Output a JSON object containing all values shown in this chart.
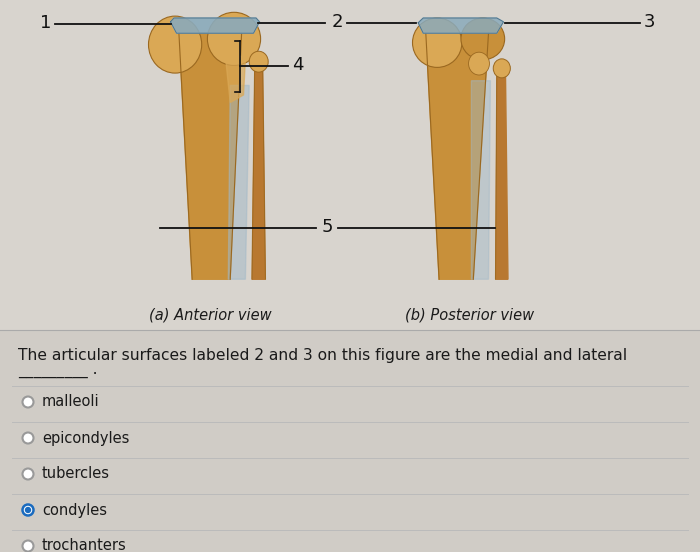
{
  "background_color": "#d8d4ce",
  "question_text": "The articular surfaces labeled 2 and 3 on this figure are the medial and lateral",
  "question_blank": "_________.",
  "question_fontsize": 11.2,
  "caption_a": "(a) Anterior view",
  "caption_b": "(b) Posterior view",
  "caption_fontsize": 10.5,
  "options": [
    {
      "label": "malleoli",
      "selected": false
    },
    {
      "label": "epicondyles",
      "selected": false
    },
    {
      "label": "tubercles",
      "selected": false
    },
    {
      "label": "condyles",
      "selected": true
    },
    {
      "label": "trochanters",
      "selected": false
    }
  ],
  "option_fontsize": 10.5,
  "radio_unselected_color": "#999999",
  "radio_selected_color": "#1a6bbf",
  "line_color": "#bbbbbb",
  "text_color": "#1a1a1a",
  "label_color": "#111111",
  "bone_gold": "#c8903a",
  "bone_highlight": "#daa855",
  "bone_shadow": "#9a6820",
  "bone_cartilage": "#8aaabb",
  "bone_fibula": "#b87830",
  "interosseous": "#a0b8c8"
}
